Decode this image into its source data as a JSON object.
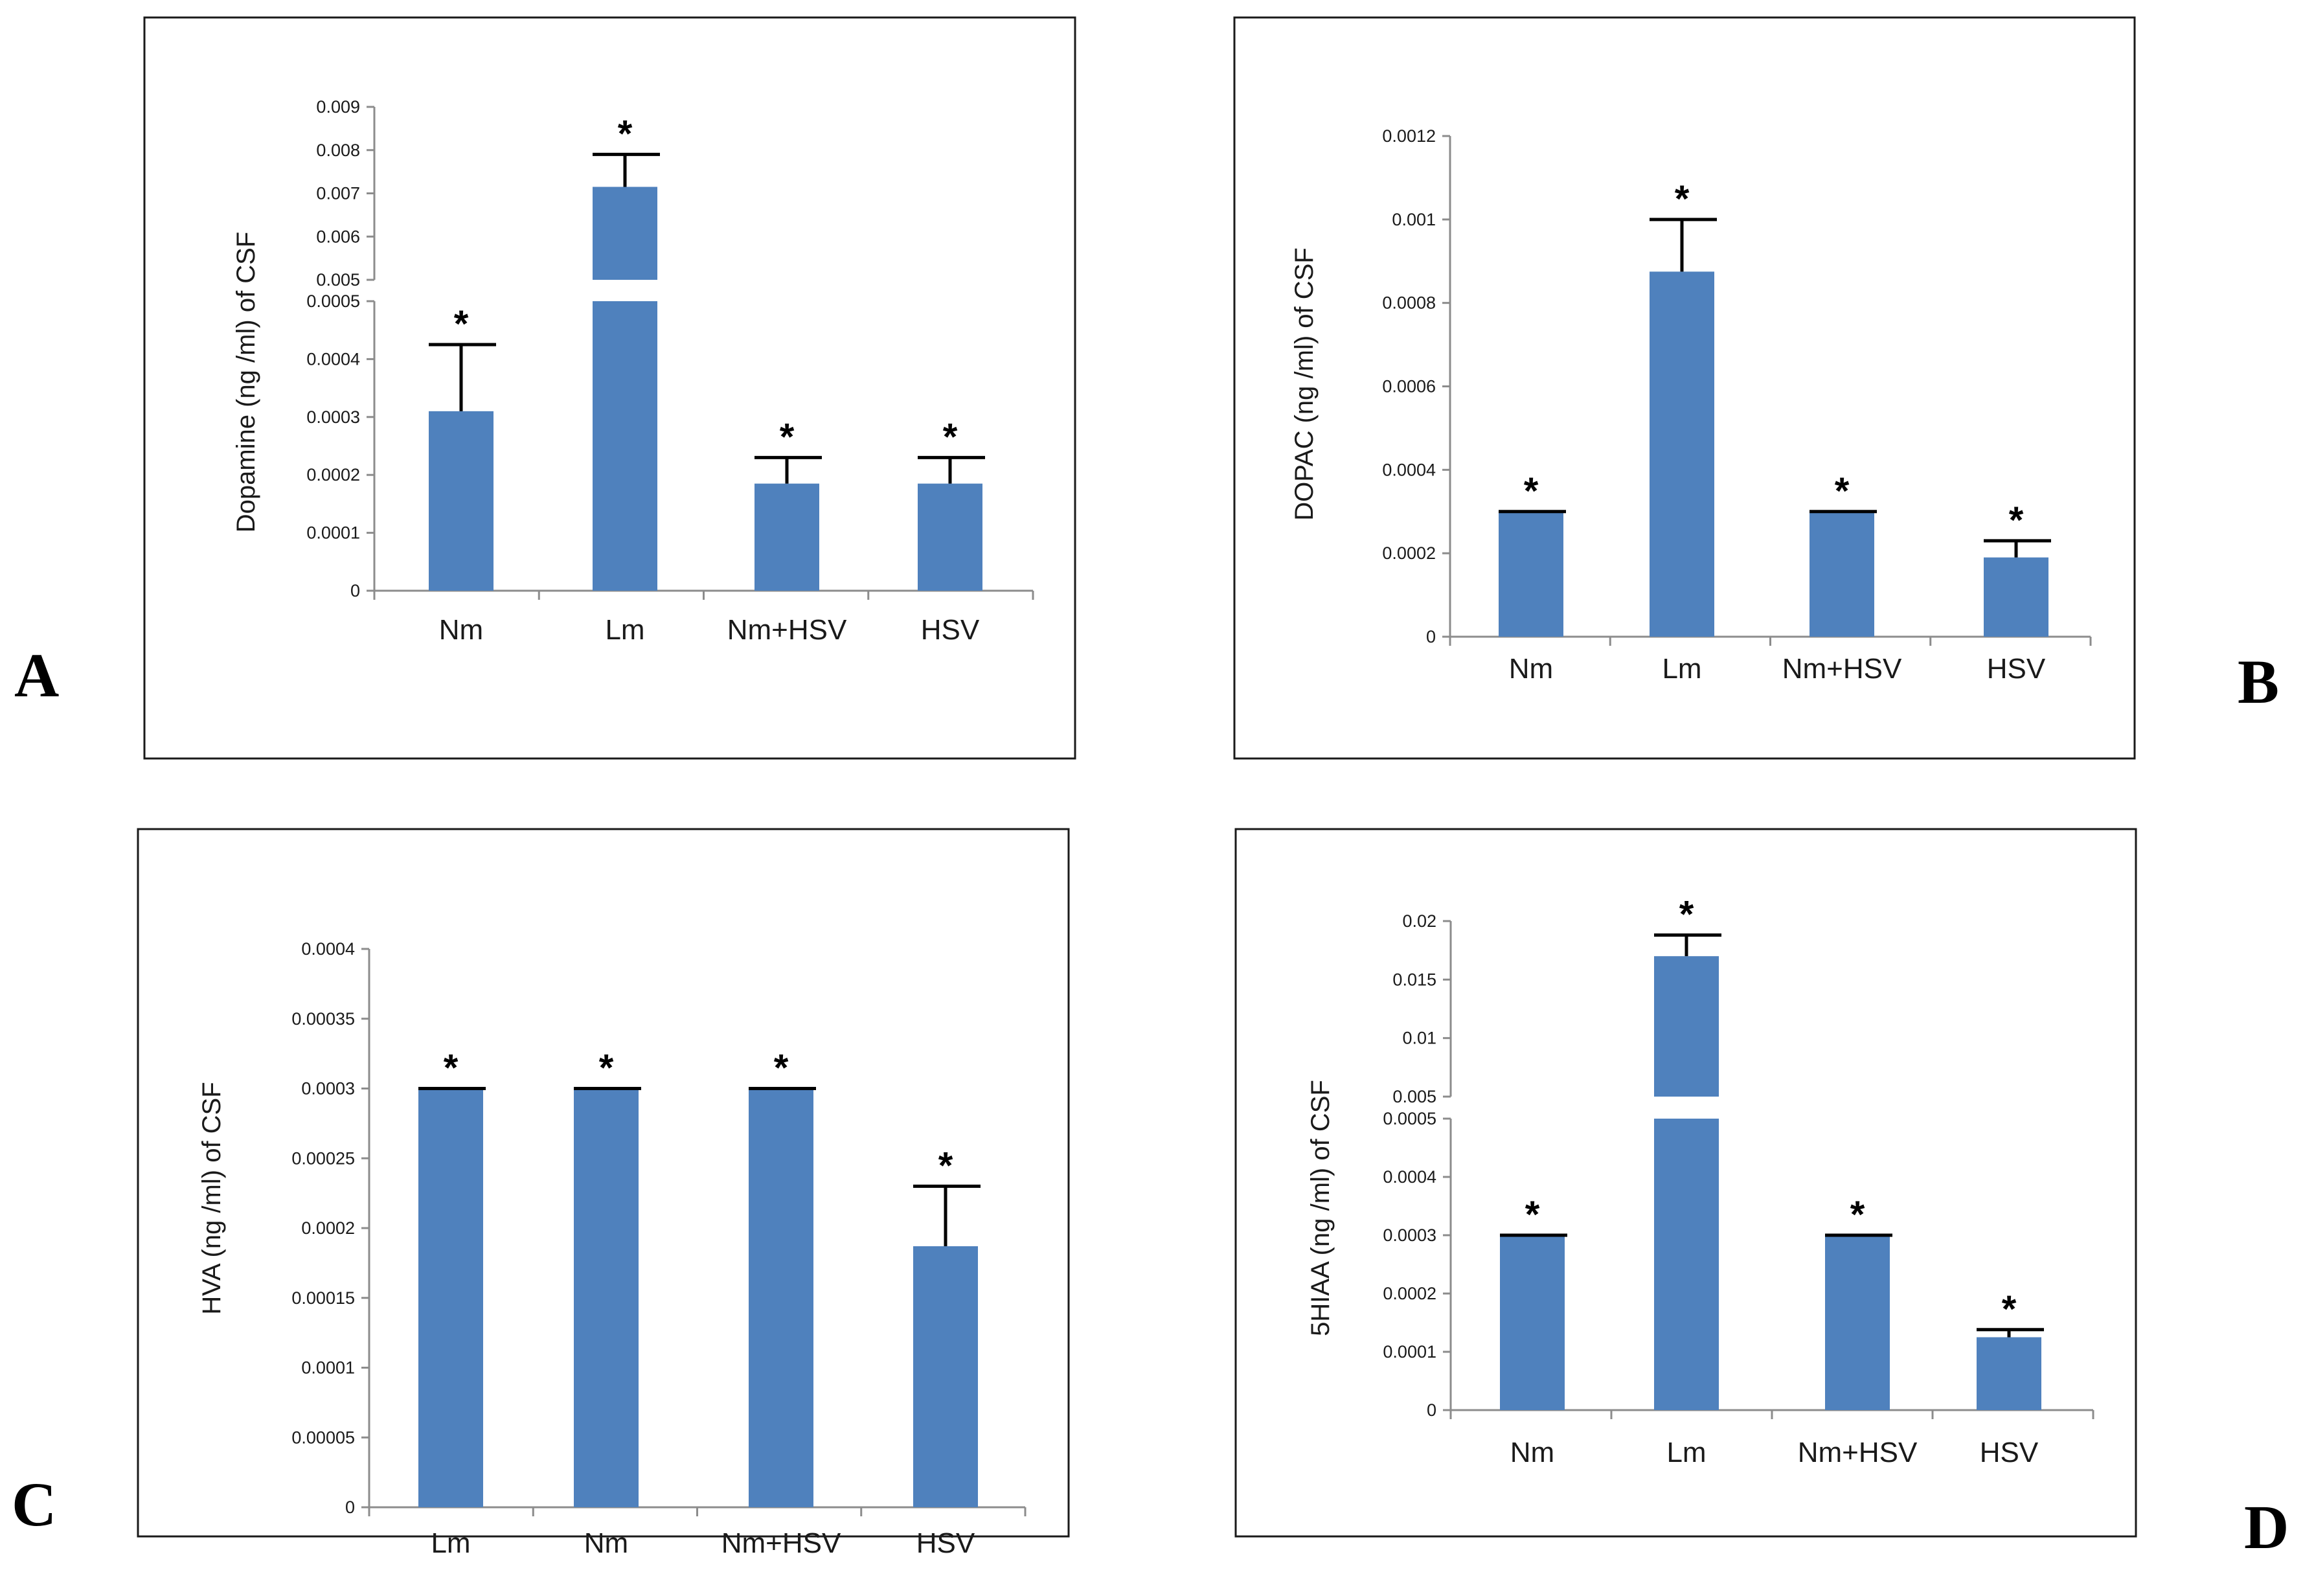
{
  "figure_title": "Four-panel bar chart figure",
  "colors": {
    "bar": "#4f81bd",
    "error_bar": "#000000",
    "axis": "#8c8c8c"
  },
  "chart_data": [
    {
      "type": "bar",
      "panel": "A",
      "title": "",
      "ylabel": "Dopamine  (ng /ml) of CSF",
      "xlabel": "",
      "categories": [
        "Nm",
        "Lm",
        "Nm+HSV",
        "HSV"
      ],
      "values": [
        0.00031,
        0.00715,
        0.000185,
        0.000185
      ],
      "errors": [
        0.000115,
        0.00075,
        4.5e-05,
        4.5e-05
      ],
      "significance": [
        "*",
        "*",
        "*",
        "*"
      ],
      "broken_axis": true,
      "lower_ylim": [
        0,
        0.0005
      ],
      "lower_ticks": [
        "0",
        "0.0001",
        "0.0002",
        "0.0003",
        "0.0004",
        "0.0005"
      ],
      "upper_ylim": [
        0.005,
        0.009
      ],
      "upper_ticks": [
        "0.005",
        "0.006",
        "0.007",
        "0.008",
        "0.009"
      ]
    },
    {
      "type": "bar",
      "panel": "B",
      "title": "",
      "ylabel": "DOPAC (ng /ml) of CSF",
      "xlabel": "",
      "categories": [
        "Nm",
        "Lm",
        "Nm+HSV",
        "HSV"
      ],
      "values": [
        0.0003,
        0.000875,
        0.0003,
        0.00019
      ],
      "errors": [
        0,
        0.000125,
        0,
        4e-05
      ],
      "significance": [
        "*",
        "*",
        "*",
        "*"
      ],
      "broken_axis": false,
      "ylim": [
        0,
        0.0012
      ],
      "ticks": [
        "0",
        "0.0002",
        "0.0004",
        "0.0006",
        "0.0008",
        "0.001",
        "0.0012"
      ]
    },
    {
      "type": "bar",
      "panel": "C",
      "title": "",
      "ylabel": "HVA  (ng /ml) of CSF",
      "xlabel": "",
      "categories": [
        "Lm",
        "Nm",
        "Nm+HSV",
        "HSV"
      ],
      "values": [
        0.0003,
        0.0003,
        0.0003,
        0.000187
      ],
      "errors": [
        0,
        0,
        0,
        4.3e-05
      ],
      "significance": [
        "*",
        "*",
        "*",
        "*"
      ],
      "broken_axis": false,
      "ylim": [
        0,
        0.0004
      ],
      "ticks": [
        "0",
        "0.00005",
        "0.0001",
        "0.00015",
        "0.0002",
        "0.00025",
        "0.0003",
        "0.00035",
        "0.0004"
      ]
    },
    {
      "type": "bar",
      "panel": "D",
      "title": "",
      "ylabel": "5HIAA (ng /ml) of CSF",
      "xlabel": "",
      "categories": [
        "Nm",
        "Lm",
        "Nm+HSV",
        "HSV"
      ],
      "values": [
        0.0003,
        0.017,
        0.0003,
        0.000125
      ],
      "errors": [
        0,
        0.0018,
        0,
        1.3e-05
      ],
      "significance": [
        "*",
        "*",
        "*",
        "*"
      ],
      "broken_axis": true,
      "lower_ylim": [
        0,
        0.0005
      ],
      "lower_ticks": [
        "0",
        "0.0001",
        "0.0002",
        "0.0003",
        "0.0004",
        "0.0005"
      ],
      "upper_ylim": [
        0.005,
        0.02
      ],
      "upper_ticks": [
        "0.005",
        "0.01",
        "0.015",
        "0.02"
      ]
    }
  ]
}
